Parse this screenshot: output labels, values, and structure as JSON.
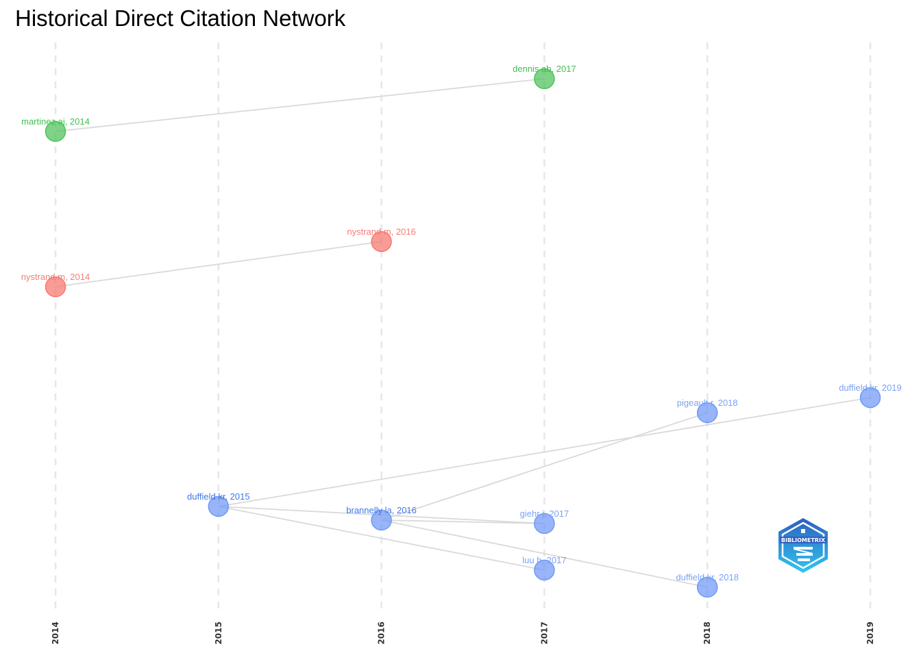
{
  "title": "Historical Direct Citation Network",
  "chart_data": {
    "type": "network",
    "title": "Historical Direct Citation Network",
    "x_axis": {
      "ticks": [
        "2014",
        "2015",
        "2016",
        "2017",
        "2018",
        "2019"
      ],
      "range": [
        2014,
        2019
      ],
      "grid": "dashed vertical"
    },
    "colors": {
      "green": "#4cc25a",
      "red": "#f8766d",
      "blue": "#6f98f5",
      "edge": "#d9d9d9",
      "grid": "#e6e6e6"
    },
    "nodes": [
      {
        "id": "dennis-ab-2017",
        "label": "dennis ab, 2017",
        "year": 2017,
        "group": "green"
      },
      {
        "id": "martinez-aj-2014",
        "label": "martinez aj, 2014",
        "year": 2014,
        "group": "green"
      },
      {
        "id": "nystrand-m-2016",
        "label": "nystrand m, 2016",
        "year": 2016,
        "group": "red"
      },
      {
        "id": "nystrand-m-2014",
        "label": "nystrand m, 2014",
        "year": 2014,
        "group": "red"
      },
      {
        "id": "duffield-kr-2019",
        "label": "duffield kr, 2019",
        "year": 2019,
        "group": "blue"
      },
      {
        "id": "pigeault-r-2018",
        "label": "pigeault r, 2018",
        "year": 2018,
        "group": "blue"
      },
      {
        "id": "duffield-kr-2015",
        "label": "duffield kr, 2015",
        "year": 2015,
        "group": "blue"
      },
      {
        "id": "brannelly-la-2016",
        "label": "brannelly la, 2016",
        "year": 2016,
        "group": "blue"
      },
      {
        "id": "giehr-j-2017",
        "label": "giehr j, 2017",
        "year": 2017,
        "group": "blue"
      },
      {
        "id": "luu-h-2017",
        "label": "luu h, 2017",
        "year": 2017,
        "group": "blue"
      },
      {
        "id": "duffield-kr-2018",
        "label": "duffield kr, 2018",
        "year": 2018,
        "group": "blue"
      }
    ],
    "edges": [
      {
        "from": "martinez-aj-2014",
        "to": "dennis-ab-2017"
      },
      {
        "from": "nystrand-m-2014",
        "to": "nystrand-m-2016"
      },
      {
        "from": "duffield-kr-2015",
        "to": "duffield-kr-2019"
      },
      {
        "from": "duffield-kr-2015",
        "to": "giehr-j-2017"
      },
      {
        "from": "duffield-kr-2015",
        "to": "luu-h-2017"
      },
      {
        "from": "brannelly-la-2016",
        "to": "pigeault-r-2018"
      },
      {
        "from": "brannelly-la-2016",
        "to": "giehr-j-2017"
      },
      {
        "from": "brannelly-la-2016",
        "to": "duffield-kr-2018"
      }
    ]
  },
  "logo": {
    "text": "BIBLIOMETRIX",
    "colors": {
      "top": "#2f5fbf",
      "bottom": "#2fc6f0"
    }
  }
}
